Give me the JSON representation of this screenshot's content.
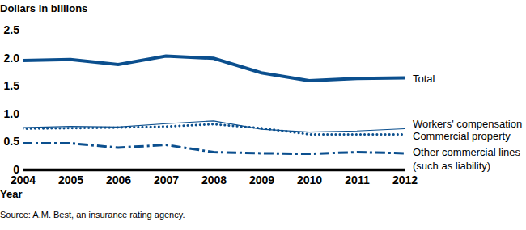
{
  "chart_data": {
    "type": "line",
    "y_label": "Dollars in billions",
    "x_label": "Year",
    "annotations": [
      "Source: A.M. Best, an insurance rating agency."
    ],
    "x": [
      2004,
      2005,
      2006,
      2007,
      2008,
      2009,
      2010,
      2011,
      2012
    ],
    "xlim": [
      2004,
      2012
    ],
    "xticks": [
      2004,
      2005,
      2006,
      2007,
      2008,
      2009,
      2010,
      2011,
      2012
    ],
    "ylim": [
      0,
      2.5
    ],
    "yticks": [
      0,
      0.5,
      {
        "value": 1,
        "label": "1.0"
      },
      1.5,
      {
        "value": 2,
        "label": "2.0"
      },
      2.5
    ],
    "grid": false,
    "series": [
      {
        "name": "Total",
        "color": "#0b4f8e",
        "line_style": "solid",
        "values": [
          1.95,
          1.97,
          1.88,
          2.03,
          1.99,
          1.73,
          1.59,
          1.63,
          1.64
        ]
      },
      {
        "name": "Workers' compensation",
        "color": "#0b4f8e",
        "line_style": "solid",
        "values": [
          0.75,
          0.77,
          0.76,
          0.82,
          0.87,
          0.72,
          0.67,
          0.69,
          0.73
        ]
      },
      {
        "name": "Commercial property",
        "color": "#0b4f8e",
        "line_style": "dotted",
        "values": [
          0.73,
          0.74,
          0.75,
          0.77,
          0.81,
          0.74,
          0.63,
          0.63,
          0.63
        ]
      },
      {
        "name": "Other commercial lines (such as liability)",
        "color": "#0b4f8e",
        "line_style": "dashdot",
        "values": [
          0.47,
          0.47,
          0.39,
          0.44,
          0.31,
          0.29,
          0.28,
          0.31,
          0.29
        ]
      }
    ]
  }
}
